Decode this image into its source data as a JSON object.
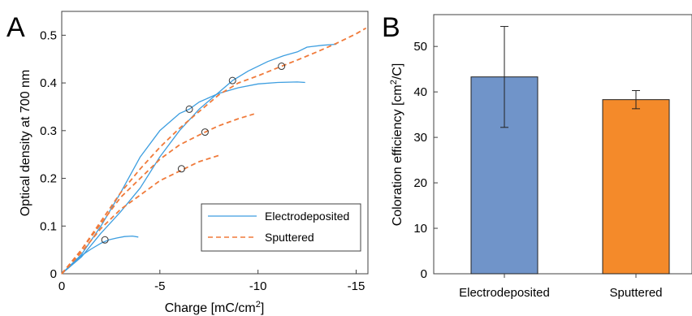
{
  "panels": {
    "a_label": "A",
    "b_label": "B"
  },
  "chart_data": [
    {
      "type": "line",
      "panel": "A",
      "xlabel_main": "Charge [mC/cm",
      "xlabel_sup": "2",
      "xlabel_end": "]",
      "ylabel": "Optical density at 700 nm",
      "xlim": [
        0,
        -15.6
      ],
      "ylim": [
        0,
        0.55
      ],
      "xticks": [
        0,
        -5,
        -10,
        -15
      ],
      "xtick_labels": [
        "0",
        "-5",
        "-10",
        "-15"
      ],
      "yticks": [
        0,
        0.1,
        0.2,
        0.3,
        0.4,
        0.5
      ],
      "ytick_labels": [
        "0",
        "0.1",
        "0.2",
        "0.3",
        "0.4",
        "0.5"
      ],
      "legend_placement": "bottom-right",
      "colors": {
        "Electrodeposited": "#3d9ee0",
        "Sputtered": "#f07a3a"
      },
      "series": [
        {
          "name": "Electrodeposited",
          "style": "solid",
          "color": "#3d9ee0",
          "curves": [
            [
              [
                0,
                0
              ],
              [
                -0.5,
                0.02
              ],
              [
                -1,
                0.038
              ],
              [
                -1.5,
                0.052
              ],
              [
                -2,
                0.064
              ],
              [
                -2.4,
                0.071
              ],
              [
                -2.8,
                0.075
              ],
              [
                -3.2,
                0.078
              ],
              [
                -3.6,
                0.079
              ],
              [
                -3.9,
                0.077
              ]
            ],
            [
              [
                0,
                0
              ],
              [
                -1,
                0.04
              ],
              [
                -2,
                0.1
              ],
              [
                -3,
                0.17
              ],
              [
                -4,
                0.245
              ],
              [
                -5,
                0.3
              ],
              [
                -6,
                0.336
              ],
              [
                -6.5,
                0.345
              ],
              [
                -7,
                0.36
              ],
              [
                -8,
                0.378
              ],
              [
                -9,
                0.39
              ],
              [
                -10,
                0.398
              ],
              [
                -11,
                0.401
              ],
              [
                -12,
                0.402
              ],
              [
                -12.4,
                0.401
              ]
            ],
            [
              [
                0,
                0
              ],
              [
                -1,
                0.035
              ],
              [
                -2,
                0.085
              ],
              [
                -3,
                0.13
              ],
              [
                -4,
                0.18
              ],
              [
                -5,
                0.245
              ],
              [
                -6,
                0.3
              ],
              [
                -7,
                0.345
              ],
              [
                -8,
                0.38
              ],
              [
                -8.7,
                0.405
              ],
              [
                -9.5,
                0.425
              ],
              [
                -10.5,
                0.445
              ],
              [
                -11.3,
                0.457
              ],
              [
                -12,
                0.465
              ],
              [
                -12.5,
                0.475
              ],
              [
                -13.3,
                0.479
              ],
              [
                -14,
                0.481
              ]
            ]
          ]
        },
        {
          "name": "Sputtered",
          "style": "dashed",
          "color": "#f07a3a",
          "curves": [
            [
              [
                0,
                0
              ],
              [
                -1,
                0.045
              ],
              [
                -2,
                0.095
              ],
              [
                -3,
                0.135
              ],
              [
                -4,
                0.165
              ],
              [
                -5,
                0.195
              ],
              [
                -6,
                0.215
              ],
              [
                -7,
                0.235
              ],
              [
                -8,
                0.248
              ]
            ],
            [
              [
                0,
                0
              ],
              [
                -1,
                0.05
              ],
              [
                -2,
                0.105
              ],
              [
                -3,
                0.16
              ],
              [
                -4,
                0.2
              ],
              [
                -5,
                0.24
              ],
              [
                -6,
                0.27
              ],
              [
                -7.2,
                0.295
              ],
              [
                -8,
                0.31
              ],
              [
                -9,
                0.325
              ],
              [
                -9.8,
                0.335
              ]
            ],
            [
              [
                0,
                0
              ],
              [
                -1,
                0.05
              ],
              [
                -2,
                0.11
              ],
              [
                -3,
                0.17
              ],
              [
                -4,
                0.22
              ],
              [
                -5,
                0.265
              ],
              [
                -6,
                0.305
              ],
              [
                -7,
                0.34
              ],
              [
                -8,
                0.375
              ],
              [
                -9,
                0.4
              ],
              [
                -10,
                0.415
              ],
              [
                -11.2,
                0.435
              ],
              [
                -12,
                0.448
              ],
              [
                -13,
                0.465
              ],
              [
                -14,
                0.483
              ],
              [
                -15,
                0.503
              ],
              [
                -15.5,
                0.515
              ]
            ]
          ]
        }
      ],
      "markers": [
        [
          -2.2,
          0.071
        ],
        [
          -6.5,
          0.345
        ],
        [
          -8.7,
          0.405
        ],
        [
          -11.2,
          0.435
        ],
        [
          -7.3,
          0.297
        ],
        [
          -6.1,
          0.22
        ]
      ]
    },
    {
      "type": "bar",
      "panel": "B",
      "ylabel_main": "Coloration efficiency [cm",
      "ylabel_sup": "2",
      "ylabel_end": "/C]",
      "categories": [
        "Electrodeposited",
        "Sputtered"
      ],
      "values": [
        43.3,
        38.3
      ],
      "errors": [
        11.1,
        2.0
      ],
      "colors": [
        "#7094c9",
        "#f48a2a"
      ],
      "ylim": [
        0,
        57
      ],
      "yticks": [
        0,
        10,
        20,
        30,
        40,
        50
      ],
      "ytick_labels": [
        "0",
        "10",
        "20",
        "30",
        "40",
        "50"
      ]
    }
  ]
}
